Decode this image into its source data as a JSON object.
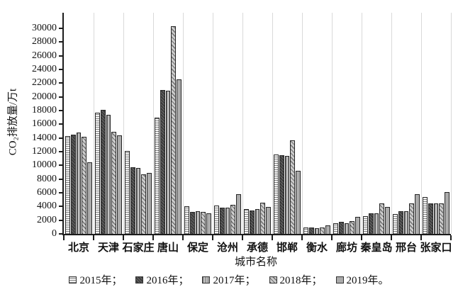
{
  "chart_data": {
    "type": "bar",
    "title": "",
    "xlabel": "城市名称",
    "ylabel": "CO₂排放量/万t",
    "ylim": [
      0,
      31000
    ],
    "yticks": [
      0,
      2000,
      4000,
      6000,
      8000,
      10000,
      12000,
      14000,
      16000,
      18000,
      20000,
      22000,
      24000,
      26000,
      28000,
      30000
    ],
    "grid": "light vertical gridlines at category boundaries",
    "legend_position": "bottom",
    "categories": [
      "北京",
      "天津",
      "石家庄",
      "唐山",
      "保定",
      "沧州",
      "承德",
      "邯郸",
      "衡水",
      "廊坊",
      "秦皇岛",
      "邢台",
      "张家口"
    ],
    "series": [
      {
        "name": "2015年",
        "legend_label": "2015年；",
        "pattern": "light-dotted-rows",
        "color": "#f1f1f1",
        "values": [
          14300,
          17700,
          12100,
          17000,
          4000,
          4100,
          3600,
          11600,
          950,
          1600,
          2600,
          2900,
          5400
        ]
      },
      {
        "name": "2016年",
        "legend_label": "2016年；",
        "pattern": "dark-speckled",
        "color": "#3d3d3d",
        "values": [
          14500,
          18100,
          9700,
          21000,
          3200,
          3800,
          3400,
          11500,
          900,
          1800,
          3050,
          3300,
          4500
        ]
      },
      {
        "name": "2017年",
        "legend_label": "2017年；",
        "pattern": "gray-vertical-lines",
        "color": "#c2c2c2",
        "values": [
          14800,
          17400,
          9600,
          20900,
          3300,
          3800,
          3600,
          11400,
          850,
          1600,
          3000,
          3300,
          4500
        ]
      },
      {
        "name": "2018年",
        "legend_label": "2018年；",
        "pattern": "diagonal-hatch",
        "color": "#cccccc",
        "values": [
          14200,
          14900,
          8700,
          30300,
          3200,
          4200,
          4600,
          13700,
          900,
          1900,
          4500,
          4500,
          4500
        ]
      },
      {
        "name": "2019年",
        "legend_label": "2019年。",
        "pattern": "solid-gray",
        "color": "#ababab",
        "values": [
          10400,
          14400,
          8900,
          22600,
          3000,
          5800,
          3900,
          9200,
          1200,
          2450,
          3900,
          5800,
          6100
        ]
      }
    ]
  },
  "style_tokens": {
    "axis_color": "#1c1c1c",
    "gridline_color": "#d9d9d9",
    "background": "#ffffff"
  }
}
